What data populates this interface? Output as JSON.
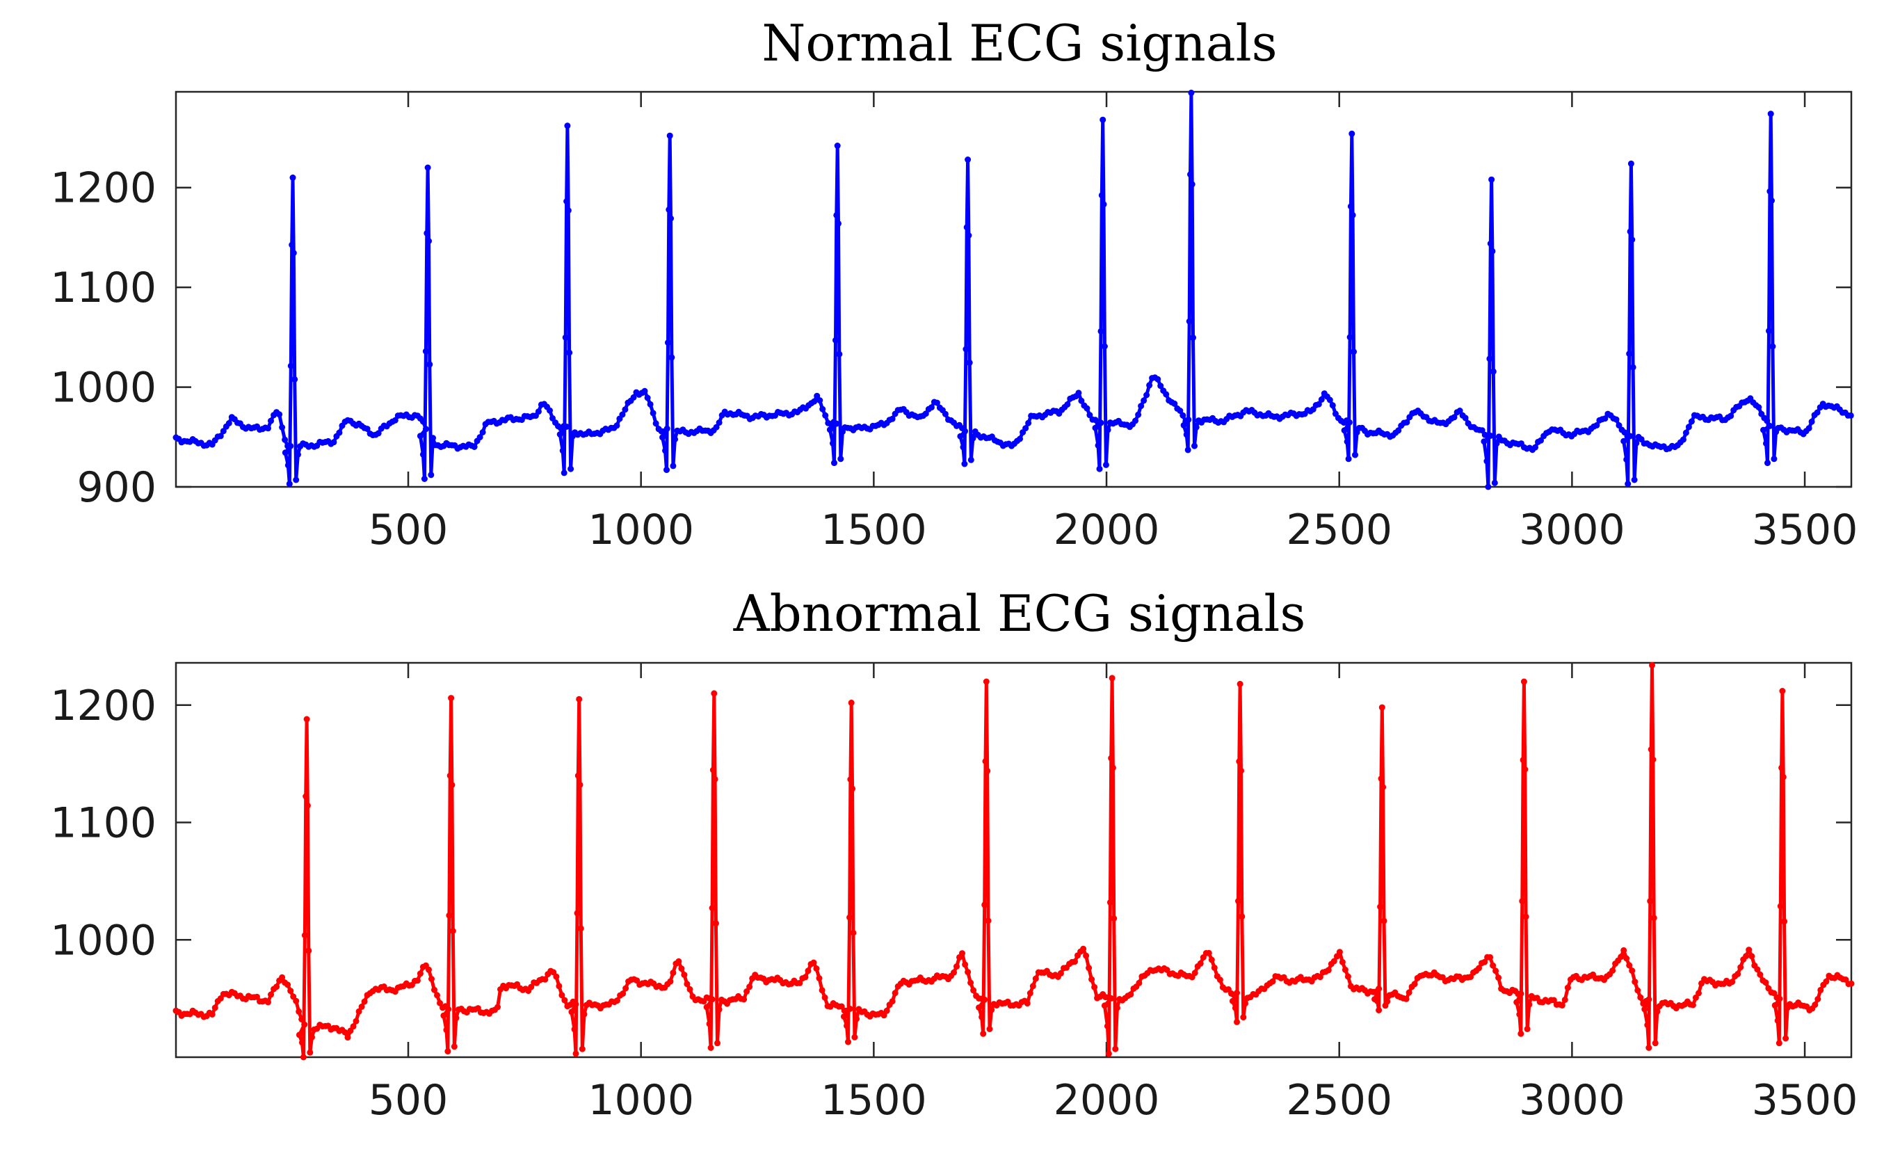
{
  "chart_data": [
    {
      "type": "line",
      "title": "Normal ECG signals",
      "xlabel": "",
      "ylabel": "",
      "xlim": [
        1,
        3600
      ],
      "ylim": [
        900,
        1296
      ],
      "xticks": [
        500,
        1000,
        1500,
        2000,
        2500,
        3000,
        3500
      ],
      "yticks": [
        900,
        1000,
        1100,
        1200
      ],
      "grid": false,
      "series": [
        {
          "color": "#0000ff",
          "marker": "dot",
          "baseline_knots": [
            [
              0,
              948
            ],
            [
              80,
              942
            ],
            [
              120,
              968
            ],
            [
              160,
              958
            ],
            [
              200,
              960
            ],
            [
              220,
              978
            ],
            [
              240,
              940
            ],
            [
              300,
              942
            ],
            [
              340,
              946
            ],
            [
              370,
              968
            ],
            [
              430,
              952
            ],
            [
              475,
              970
            ],
            [
              520,
              972
            ],
            [
              560,
              942
            ],
            [
              640,
              940
            ],
            [
              670,
              964
            ],
            [
              720,
              968
            ],
            [
              770,
              970
            ],
            [
              790,
              985
            ],
            [
              820,
              962
            ],
            [
              880,
              952
            ],
            [
              940,
              958
            ],
            [
              990,
              995
            ],
            [
              1010,
              994
            ],
            [
              1040,
              956
            ],
            [
              1100,
              955
            ],
            [
              1160,
              957
            ],
            [
              1180,
              975
            ],
            [
              1240,
              970
            ],
            [
              1340,
              975
            ],
            [
              1380,
              990
            ],
            [
              1400,
              966
            ],
            [
              1460,
              958
            ],
            [
              1520,
              962
            ],
            [
              1560,
              978
            ],
            [
              1600,
              968
            ],
            [
              1630,
              985
            ],
            [
              1680,
              960
            ],
            [
              1740,
              950
            ],
            [
              1800,
              940
            ],
            [
              1840,
              970
            ],
            [
              1900,
              976
            ],
            [
              1940,
              994
            ],
            [
              1970,
              966
            ],
            [
              2060,
              962
            ],
            [
              2100,
              1012
            ],
            [
              2140,
              985
            ],
            [
              2170,
              968
            ],
            [
              2250,
              966
            ],
            [
              2300,
              976
            ],
            [
              2360,
              970
            ],
            [
              2440,
              975
            ],
            [
              2470,
              994
            ],
            [
              2500,
              968
            ],
            [
              2560,
              955
            ],
            [
              2620,
              952
            ],
            [
              2660,
              976
            ],
            [
              2720,
              962
            ],
            [
              2760,
              975
            ],
            [
              2790,
              958
            ],
            [
              2860,
              945
            ],
            [
              2920,
              938
            ],
            [
              2950,
              958
            ],
            [
              3000,
              952
            ],
            [
              3050,
              960
            ],
            [
              3080,
              975
            ],
            [
              3110,
              955
            ],
            [
              3180,
              940
            ],
            [
              3230,
              940
            ],
            [
              3260,
              970
            ],
            [
              3330,
              968
            ],
            [
              3380,
              990
            ],
            [
              3430,
              960
            ],
            [
              3500,
              954
            ],
            [
              3540,
              984
            ],
            [
              3600,
              972
            ]
          ],
          "beats": [
            [
              250,
              1210,
              903
            ],
            [
              540,
              1220,
              908
            ],
            [
              840,
              1262,
              914
            ],
            [
              1060,
              1252,
              917
            ],
            [
              1420,
              1242,
              924
            ],
            [
              1700,
              1228,
              923
            ],
            [
              1990,
              1268,
              918
            ],
            [
              2180,
              1295,
              937
            ],
            [
              2525,
              1254,
              928
            ],
            [
              2825,
              1208,
              900
            ],
            [
              3125,
              1224,
              903
            ],
            [
              3425,
              1274,
              924
            ]
          ]
        }
      ]
    },
    {
      "type": "line",
      "title": "Abnormal ECG signals",
      "xlabel": "",
      "ylabel": "",
      "xlim": [
        1,
        3600
      ],
      "ylim": [
        900,
        1236
      ],
      "xticks": [
        500,
        1000,
        1500,
        2000,
        2500,
        3000,
        3500
      ],
      "yticks": [
        1000,
        1100,
        1200
      ],
      "grid": false,
      "series": [
        {
          "color": "#ff0000",
          "marker": "dot",
          "baseline_knots": [
            [
              0,
              938
            ],
            [
              80,
              936
            ],
            [
              100,
              955
            ],
            [
              140,
              952
            ],
            [
              200,
              948
            ],
            [
              230,
              970
            ],
            [
              260,
              945
            ],
            [
              280,
              925
            ],
            [
              340,
              926
            ],
            [
              370,
              918
            ],
            [
              420,
              958
            ],
            [
              480,
              958
            ],
            [
              520,
              966
            ],
            [
              540,
              980
            ],
            [
              570,
              942
            ],
            [
              640,
              940
            ],
            [
              690,
              938
            ],
            [
              700,
              962
            ],
            [
              760,
              958
            ],
            [
              810,
              974
            ],
            [
              840,
              945
            ],
            [
              900,
              944
            ],
            [
              940,
              945
            ],
            [
              980,
              966
            ],
            [
              1020,
              962
            ],
            [
              1060,
              960
            ],
            [
              1080,
              985
            ],
            [
              1110,
              950
            ],
            [
              1180,
              948
            ],
            [
              1220,
              950
            ],
            [
              1240,
              968
            ],
            [
              1300,
              965
            ],
            [
              1340,
              962
            ],
            [
              1370,
              982
            ],
            [
              1400,
              945
            ],
            [
              1480,
              938
            ],
            [
              1520,
              935
            ],
            [
              1560,
              964
            ],
            [
              1620,
              966
            ],
            [
              1670,
              970
            ],
            [
              1690,
              988
            ],
            [
              1720,
              950
            ],
            [
              1780,
              945
            ],
            [
              1830,
              946
            ],
            [
              1850,
              972
            ],
            [
              1900,
              970
            ],
            [
              1950,
              992
            ],
            [
              1980,
              952
            ],
            [
              2040,
              948
            ],
            [
              2060,
              960
            ],
            [
              2100,
              976
            ],
            [
              2180,
              968
            ],
            [
              2220,
              990
            ],
            [
              2250,
              958
            ],
            [
              2300,
              952
            ],
            [
              2330,
              955
            ],
            [
              2360,
              968
            ],
            [
              2400,
              965
            ],
            [
              2460,
              968
            ],
            [
              2500,
              988
            ],
            [
              2530,
              958
            ],
            [
              2600,
              955
            ],
            [
              2640,
              950
            ],
            [
              2680,
              972
            ],
            [
              2740,
              966
            ],
            [
              2790,
              970
            ],
            [
              2820,
              988
            ],
            [
              2850,
              958
            ],
            [
              2920,
              950
            ],
            [
              2980,
              945
            ],
            [
              3000,
              968
            ],
            [
              3080,
              968
            ],
            [
              3110,
              992
            ],
            [
              3150,
              948
            ],
            [
              3220,
              944
            ],
            [
              3260,
              945
            ],
            [
              3280,
              965
            ],
            [
              3340,
              962
            ],
            [
              3380,
              990
            ],
            [
              3420,
              958
            ],
            [
              3470,
              945
            ],
            [
              3520,
              942
            ],
            [
              3550,
              970
            ],
            [
              3600,
              964
            ]
          ],
          "beats": [
            [
              280,
              1188,
              900
            ],
            [
              590,
              1206,
              905
            ],
            [
              865,
              1205,
              903
            ],
            [
              1155,
              1210,
              908
            ],
            [
              1450,
              1202,
              913
            ],
            [
              1740,
              1220,
              920
            ],
            [
              2010,
              1223,
              903
            ],
            [
              2285,
              1218,
              930
            ],
            [
              2590,
              1198,
              940
            ],
            [
              2895,
              1220,
              920
            ],
            [
              3170,
              1234,
              908
            ],
            [
              3450,
              1212,
              912
            ]
          ]
        }
      ]
    }
  ]
}
